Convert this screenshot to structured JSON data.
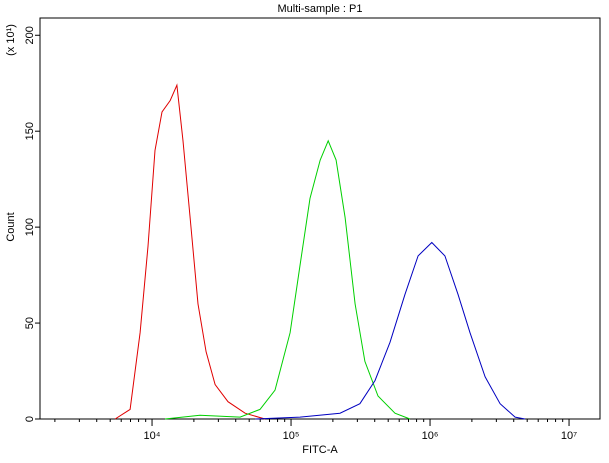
{
  "chart_data": {
    "type": "line",
    "title": "Multi-sample : P1",
    "x_label": "FITC-A",
    "y_label": "Count",
    "y_multiplier": "(x 10¹)",
    "xscale": "log",
    "xlim": [
      1563,
      16700000
    ],
    "ylim": [
      0,
      209
    ],
    "xticks": [
      {
        "value": 10000,
        "label": "10⁴"
      },
      {
        "value": 100000,
        "label": "10⁵"
      },
      {
        "value": 1000000,
        "label": "10⁶"
      },
      {
        "value": 10000000,
        "label": "10⁷"
      }
    ],
    "xminorticks": [
      2000,
      3000,
      4000,
      5000,
      6000,
      7000,
      8000,
      9000,
      20000,
      30000,
      40000,
      50000,
      60000,
      70000,
      80000,
      90000,
      200000,
      300000,
      400000,
      500000,
      600000,
      700000,
      800000,
      900000,
      2000000,
      3000000,
      4000000,
      5000000,
      6000000,
      7000000,
      8000000,
      9000000
    ],
    "yticks": [
      0,
      50,
      100,
      150,
      200
    ],
    "series": [
      {
        "color": "#e00000",
        "x": [
          5420,
          6950,
          8200,
          9350,
          10500,
          11800,
          13500,
          15100,
          16700,
          18800,
          21400,
          24500,
          28400,
          35200,
          46700,
          65000
        ],
        "values": [
          0,
          5,
          45,
          90,
          140,
          160,
          166,
          174,
          145,
          105,
          60,
          35,
          18,
          9,
          3,
          0
        ]
      },
      {
        "color": "#00d000",
        "x": [
          12400,
          22100,
          43000,
          59800,
          76700,
          98400,
          116000,
          137000,
          162000,
          185000,
          211000,
          245000,
          289000,
          340000,
          422000,
          560000,
          718000
        ],
        "values": [
          0,
          2,
          1,
          5,
          15,
          45,
          80,
          115,
          135,
          145,
          135,
          105,
          60,
          30,
          12,
          3,
          0
        ]
      },
      {
        "color": "#0000c0",
        "x": [
          55100,
          116000,
          225000,
          313000,
          402000,
          515000,
          661000,
          820000,
          1030000,
          1280000,
          1590000,
          1940000,
          2490000,
          3190000,
          4090000,
          4820000
        ],
        "values": [
          0,
          1,
          3,
          8,
          20,
          40,
          65,
          85,
          92,
          85,
          65,
          45,
          22,
          8,
          1,
          0
        ]
      }
    ]
  }
}
